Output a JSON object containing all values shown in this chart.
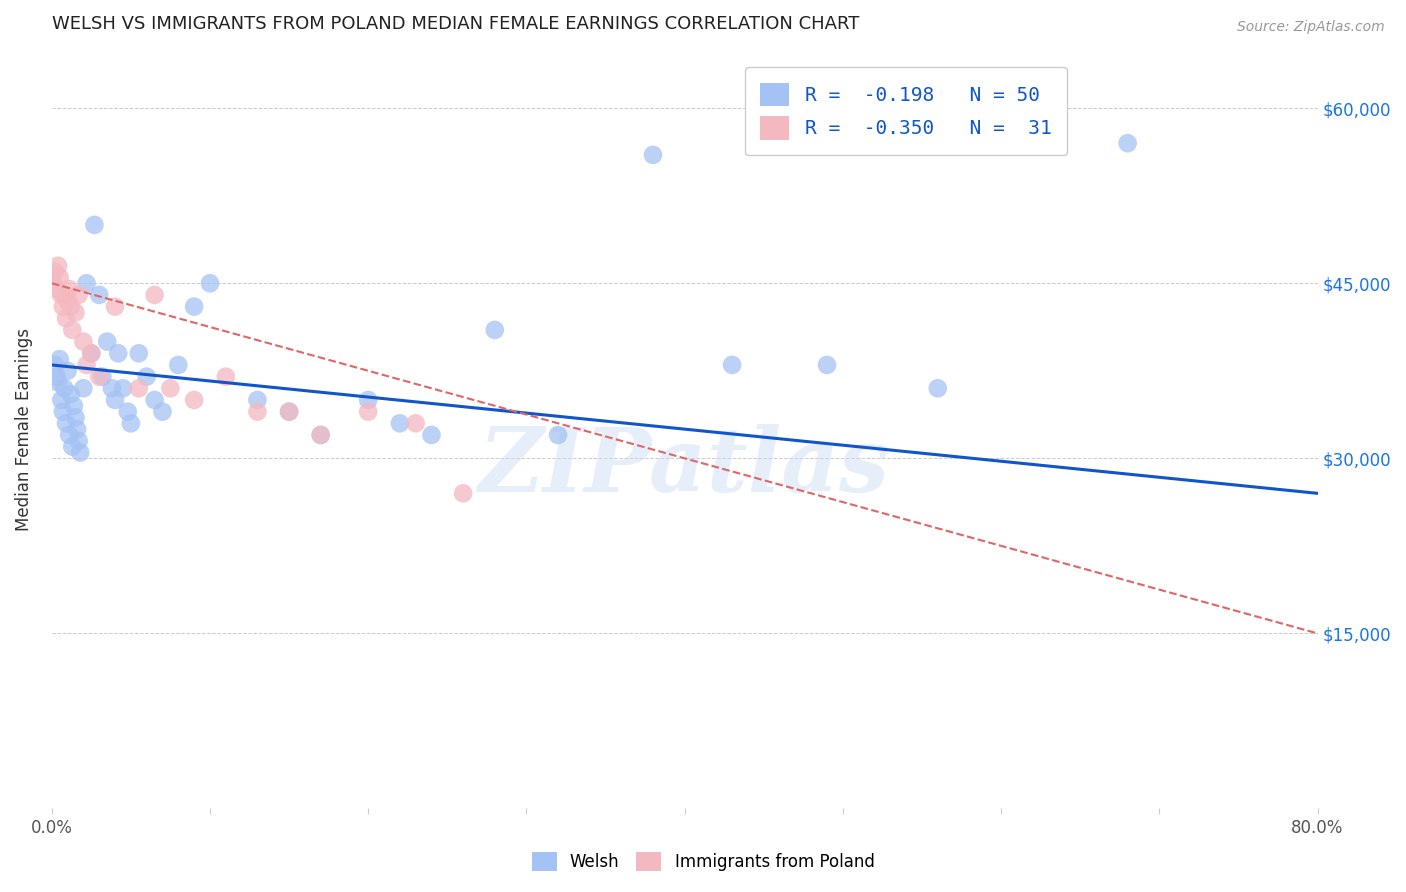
{
  "title": "WELSH VS IMMIGRANTS FROM POLAND MEDIAN FEMALE EARNINGS CORRELATION CHART",
  "source": "Source: ZipAtlas.com",
  "ylabel": "Median Female Earnings",
  "x_min": 0.0,
  "x_max": 0.8,
  "y_min": 0,
  "y_max": 65000,
  "yticks": [
    0,
    15000,
    30000,
    45000,
    60000
  ],
  "ytick_labels_right": [
    "",
    "$15,000",
    "$30,000",
    "$45,000",
    "$60,000"
  ],
  "xticks": [
    0.0,
    0.1,
    0.2,
    0.3,
    0.4,
    0.5,
    0.6,
    0.7,
    0.8
  ],
  "xtick_labels": [
    "0.0%",
    "",
    "",
    "",
    "",
    "",
    "",
    "",
    "80.0%"
  ],
  "legend_r1": "R =  -0.198   N = 50",
  "legend_r2": "R =  -0.350   N =  31",
  "watermark": "ZIPatlas",
  "color_blue": "#a4c2f4",
  "color_pink": "#f4b8c1",
  "color_blue_line": "#1155cc",
  "color_pink_line": "#cc4125",
  "color_pink_line_dashed": "#e06666",
  "blue_line_y0": 38000,
  "blue_line_y1": 27000,
  "pink_line_y0": 45000,
  "pink_line_y1": 15000,
  "welsh_x": [
    0.002,
    0.003,
    0.004,
    0.005,
    0.006,
    0.007,
    0.008,
    0.009,
    0.01,
    0.011,
    0.012,
    0.013,
    0.014,
    0.015,
    0.016,
    0.017,
    0.018,
    0.02,
    0.022,
    0.025,
    0.027,
    0.03,
    0.032,
    0.035,
    0.038,
    0.04,
    0.042,
    0.045,
    0.048,
    0.05,
    0.055,
    0.06,
    0.065,
    0.07,
    0.08,
    0.09,
    0.1,
    0.13,
    0.15,
    0.17,
    0.2,
    0.22,
    0.24,
    0.28,
    0.32,
    0.38,
    0.43,
    0.49,
    0.56,
    0.68
  ],
  "welsh_y": [
    38000,
    37000,
    36500,
    38500,
    35000,
    34000,
    36000,
    33000,
    37500,
    32000,
    35500,
    31000,
    34500,
    33500,
    32500,
    31500,
    30500,
    36000,
    45000,
    39000,
    50000,
    44000,
    37000,
    40000,
    36000,
    35000,
    39000,
    36000,
    34000,
    33000,
    39000,
    37000,
    35000,
    34000,
    38000,
    43000,
    45000,
    35000,
    34000,
    32000,
    35000,
    33000,
    32000,
    41000,
    32000,
    56000,
    38000,
    38000,
    36000,
    57000
  ],
  "poland_x": [
    0.001,
    0.002,
    0.003,
    0.004,
    0.005,
    0.006,
    0.007,
    0.008,
    0.009,
    0.01,
    0.011,
    0.012,
    0.013,
    0.015,
    0.017,
    0.02,
    0.022,
    0.025,
    0.03,
    0.04,
    0.055,
    0.065,
    0.075,
    0.09,
    0.11,
    0.13,
    0.15,
    0.17,
    0.2,
    0.23,
    0.26
  ],
  "poland_y": [
    45000,
    46000,
    44500,
    46500,
    45500,
    44000,
    43000,
    44000,
    42000,
    43500,
    44500,
    43000,
    41000,
    42500,
    44000,
    40000,
    38000,
    39000,
    37000,
    43000,
    36000,
    44000,
    36000,
    35000,
    37000,
    34000,
    34000,
    32000,
    34000,
    33000,
    27000
  ]
}
